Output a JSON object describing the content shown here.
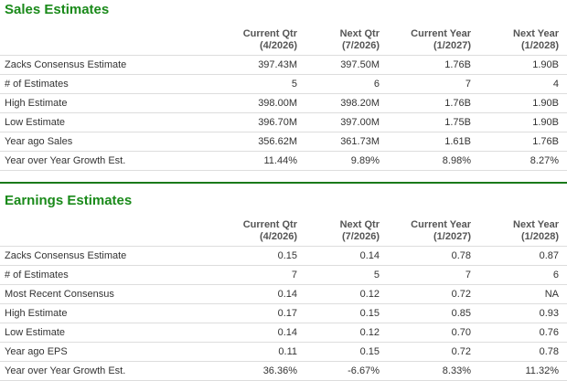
{
  "sales": {
    "title": "Sales Estimates",
    "columns": [
      {
        "name": "Current Qtr",
        "period": "(4/2026)"
      },
      {
        "name": "Next Qtr",
        "period": "(7/2026)"
      },
      {
        "name": "Current Year",
        "period": "(1/2027)"
      },
      {
        "name": "Next Year",
        "period": "(1/2028)"
      }
    ],
    "rows": [
      {
        "label": "Zacks Consensus Estimate",
        "values": [
          "397.43M",
          "397.50M",
          "1.76B",
          "1.90B"
        ]
      },
      {
        "label": "# of Estimates",
        "values": [
          "5",
          "6",
          "7",
          "4"
        ]
      },
      {
        "label": "High Estimate",
        "values": [
          "398.00M",
          "398.20M",
          "1.76B",
          "1.90B"
        ]
      },
      {
        "label": "Low Estimate",
        "values": [
          "396.70M",
          "397.00M",
          "1.75B",
          "1.90B"
        ]
      },
      {
        "label": "Year ago Sales",
        "values": [
          "356.62M",
          "361.73M",
          "1.61B",
          "1.76B"
        ]
      },
      {
        "label": "Year over Year Growth Est.",
        "values": [
          "11.44%",
          "9.89%",
          "8.98%",
          "8.27%"
        ]
      }
    ]
  },
  "earnings": {
    "title": "Earnings Estimates",
    "columns": [
      {
        "name": "Current Qtr",
        "period": "(4/2026)"
      },
      {
        "name": "Next Qtr",
        "period": "(7/2026)"
      },
      {
        "name": "Current Year",
        "period": "(1/2027)"
      },
      {
        "name": "Next Year",
        "period": "(1/2028)"
      }
    ],
    "rows": [
      {
        "label": "Zacks Consensus Estimate",
        "values": [
          "0.15",
          "0.14",
          "0.78",
          "0.87"
        ]
      },
      {
        "label": "# of Estimates",
        "values": [
          "7",
          "5",
          "7",
          "6"
        ]
      },
      {
        "label": "Most Recent Consensus",
        "values": [
          "0.14",
          "0.12",
          "0.72",
          "NA"
        ]
      },
      {
        "label": "High Estimate",
        "values": [
          "0.17",
          "0.15",
          "0.85",
          "0.93"
        ]
      },
      {
        "label": "Low Estimate",
        "values": [
          "0.14",
          "0.12",
          "0.70",
          "0.76"
        ]
      },
      {
        "label": "Year ago EPS",
        "values": [
          "0.11",
          "0.15",
          "0.72",
          "0.78"
        ]
      },
      {
        "label": "Year over Year Growth Est.",
        "values": [
          "36.36%",
          "-6.67%",
          "8.33%",
          "11.32%"
        ]
      }
    ]
  }
}
